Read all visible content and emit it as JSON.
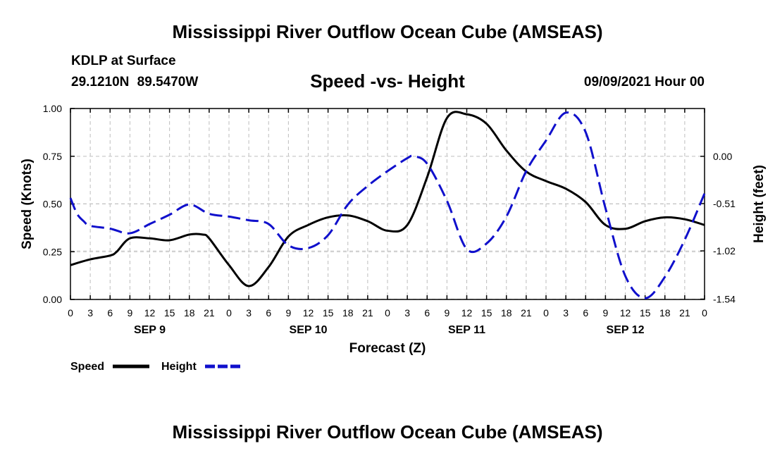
{
  "header": {
    "title": "Mississippi River Outflow Ocean Cube (AMSEAS)",
    "station": "KDLP at Surface",
    "coords": "29.1210N  89.5470W",
    "subtitle": "Speed -vs- Height",
    "datetime": "09/09/2021 Hour 00"
  },
  "footer": {
    "title": "Mississippi River Outflow Ocean Cube (AMSEAS)"
  },
  "legend": {
    "speed_label": "Speed",
    "height_label": "Height",
    "speed_color": "#000000",
    "height_color": "#1010cc"
  },
  "chart_data": {
    "type": "line",
    "title": "Speed -vs- Height",
    "xlabel": "Forecast (Z)",
    "ylabel": "Speed (Knots)",
    "y2label": "Height (feet)",
    "xlim": [
      0,
      96
    ],
    "ylim": [
      0,
      1.0
    ],
    "y2lim": [
      -1.5437,
      0.5153
    ],
    "x_ticks": [
      0,
      3,
      6,
      9,
      12,
      15,
      18,
      21,
      24,
      27,
      30,
      33,
      36,
      39,
      42,
      45,
      48,
      51,
      54,
      57,
      60,
      63,
      66,
      69,
      72,
      75,
      78,
      81,
      84,
      87,
      90,
      93,
      96
    ],
    "x_tick_labels": [
      "0",
      "3",
      "6",
      "9",
      "12",
      "15",
      "18",
      "21",
      "0",
      "3",
      "6",
      "9",
      "12",
      "15",
      "18",
      "21",
      "0",
      "3",
      "6",
      "9",
      "12",
      "15",
      "18",
      "21",
      "0",
      "3",
      "6",
      "9",
      "12",
      "15",
      "18",
      "21",
      "0"
    ],
    "day_labels": [
      {
        "x": 12,
        "label": "SEP 9"
      },
      {
        "x": 36,
        "label": "SEP 10"
      },
      {
        "x": 60,
        "label": "SEP 11"
      },
      {
        "x": 84,
        "label": "SEP 12"
      }
    ],
    "y_ticks": [
      0,
      0.25,
      0.5,
      0.75,
      1.0
    ],
    "y_tick_labels": [
      "0.00",
      "0.25",
      "0.50",
      "0.75",
      "1.00"
    ],
    "y2_ticks": [
      -1.54,
      -1.02,
      -0.51,
      0.0
    ],
    "y2_tick_labels": [
      "-1.54",
      "-1.02",
      "-0.51",
      "0.00"
    ],
    "grid": true,
    "series": [
      {
        "name": "Speed",
        "axis": "left",
        "style": "solid",
        "color": "#000000",
        "x": [
          0,
          3,
          6,
          7,
          9,
          12,
          15,
          18,
          20,
          21,
          24,
          27,
          30,
          33,
          36,
          39,
          42,
          45,
          48,
          51,
          54,
          57,
          60,
          63,
          66,
          69,
          72,
          75,
          78,
          81,
          84,
          87,
          90,
          93,
          96
        ],
        "values": [
          0.18,
          0.21,
          0.23,
          0.25,
          0.32,
          0.32,
          0.31,
          0.34,
          0.34,
          0.32,
          0.18,
          0.07,
          0.17,
          0.33,
          0.39,
          0.43,
          0.44,
          0.41,
          0.36,
          0.39,
          0.64,
          0.95,
          0.97,
          0.92,
          0.78,
          0.67,
          0.62,
          0.58,
          0.51,
          0.39,
          0.37,
          0.41,
          0.43,
          0.42,
          0.39
        ]
      },
      {
        "name": "Height",
        "axis": "right",
        "style": "dashed",
        "color": "#1010cc",
        "x": [
          0,
          1,
          2,
          3,
          6,
          9,
          12,
          15,
          18,
          21,
          24,
          27,
          30,
          33,
          36,
          39,
          42,
          45,
          48,
          51,
          52,
          54,
          57,
          60,
          63,
          66,
          69,
          72,
          75,
          78,
          81,
          84,
          87,
          90,
          93,
          96
        ],
        "values": [
          -0.45,
          -0.62,
          -0.7,
          -0.75,
          -0.78,
          -0.83,
          -0.73,
          -0.63,
          -0.52,
          -0.62,
          -0.65,
          -0.69,
          -0.73,
          -0.96,
          -0.99,
          -0.85,
          -0.52,
          -0.32,
          -0.16,
          -0.02,
          0.0,
          -0.08,
          -0.48,
          -1.0,
          -0.94,
          -0.65,
          -0.16,
          0.17,
          0.47,
          0.26,
          -0.56,
          -1.29,
          -1.53,
          -1.3,
          -0.9,
          -0.4
        ]
      }
    ]
  }
}
